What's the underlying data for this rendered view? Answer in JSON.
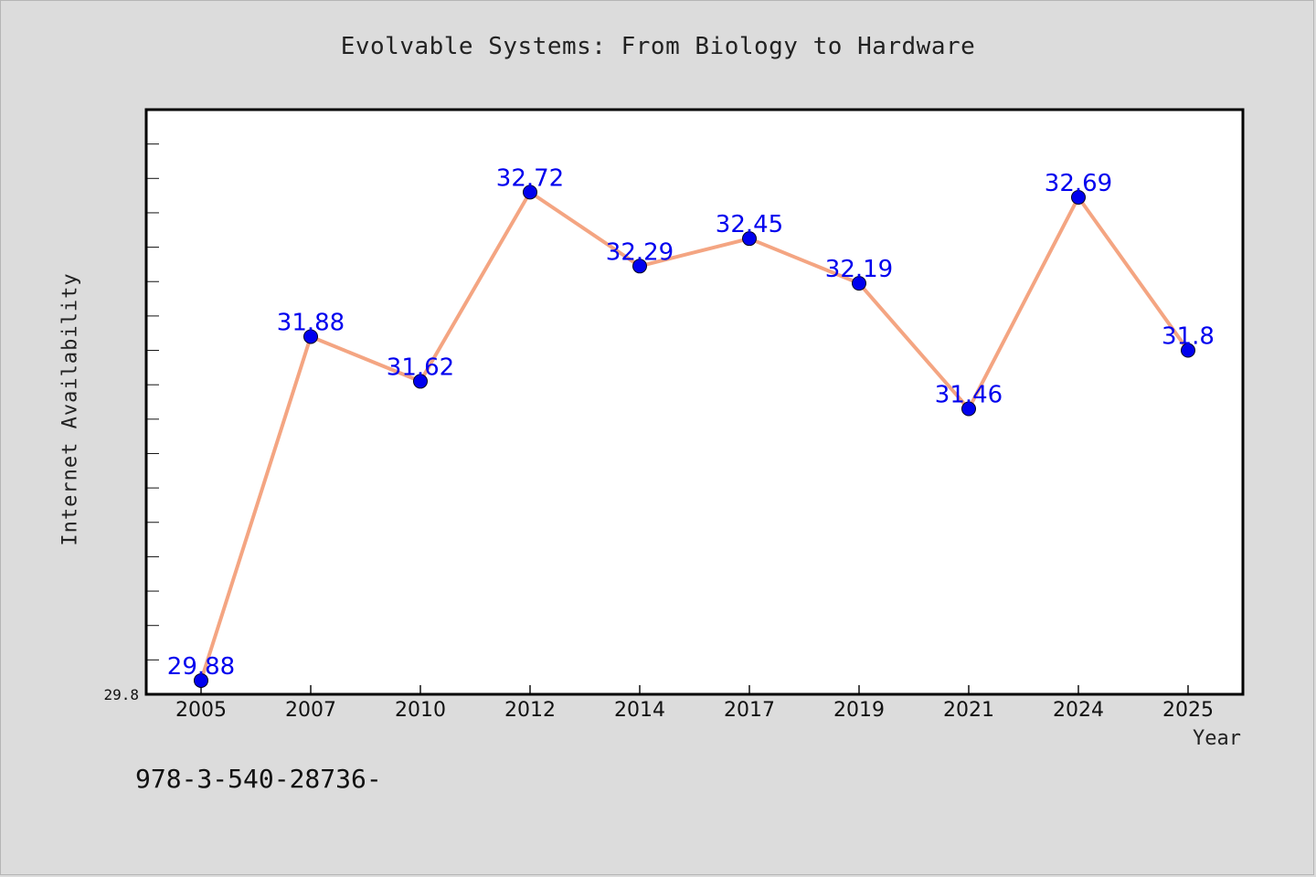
{
  "chart_data": {
    "type": "line",
    "title": "Evolvable Systems: From Biology to Hardware",
    "xlabel": "Year",
    "ylabel": "Internet Availability",
    "categories": [
      "2005",
      "2007",
      "2010",
      "2012",
      "2014",
      "2017",
      "2019",
      "2021",
      "2024",
      "2025"
    ],
    "values": [
      29.88,
      31.88,
      31.62,
      32.72,
      32.29,
      32.45,
      32.19,
      31.46,
      32.69,
      31.8
    ],
    "value_labels": [
      "29.88",
      "31.88",
      "31.62",
      "32.72",
      "32.29",
      "32.45",
      "32.19",
      "31.46",
      "32.69",
      "31.8"
    ],
    "ylim": [
      29.8,
      33.2
    ],
    "y_tick_label": "29.8",
    "grid": false,
    "line_color": "#f4a582",
    "marker_color": "#0000ee",
    "label_color": "#0000ee",
    "background_color": "#dcdcdc",
    "plot_background": "#ffffff"
  },
  "footnote": "978-3-540-28736-"
}
